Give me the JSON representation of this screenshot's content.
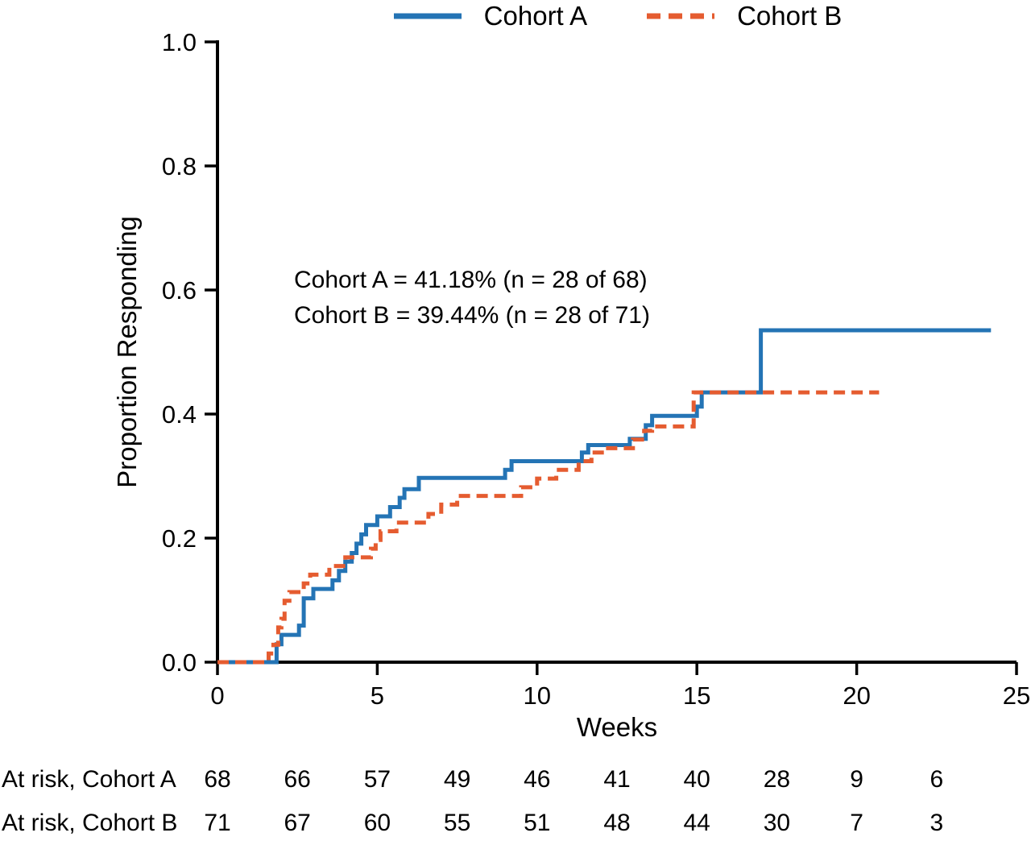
{
  "legend": {
    "items": [
      {
        "label": "Cohort A",
        "color": "#2474b5",
        "style": "solid"
      },
      {
        "label": "Cohort B",
        "color": "#e55c30",
        "style": "dashed"
      }
    ]
  },
  "annotation": {
    "line1": "Cohort A = 41.18% (n = 28 of 68)",
    "line2": "Cohort B = 39.44% (n = 28 of 71)"
  },
  "chart_data": {
    "type": "line",
    "subtype": "kaplan-meier-step",
    "title": "",
    "xlabel": "Weeks",
    "ylabel": "Proportion Responding",
    "xlim": [
      0,
      25
    ],
    "ylim": [
      0,
      1.0
    ],
    "xticks": [
      0,
      5,
      10,
      15,
      20,
      25
    ],
    "yticks": [
      0.0,
      0.2,
      0.4,
      0.6,
      0.8,
      1.0
    ],
    "ytick_labels": [
      "0.0",
      "0.2",
      "0.4",
      "0.6",
      "0.8",
      "1.0"
    ],
    "grid": false,
    "legend_position": "top-center",
    "series": [
      {
        "name": "Cohort A",
        "color": "#2474b5",
        "dash": "solid",
        "points": [
          [
            0,
            0
          ],
          [
            1.85,
            0.029
          ],
          [
            2.0,
            0.044
          ],
          [
            2.55,
            0.059
          ],
          [
            2.7,
            0.103
          ],
          [
            3.0,
            0.118
          ],
          [
            3.6,
            0.132
          ],
          [
            3.8,
            0.147
          ],
          [
            4.0,
            0.162
          ],
          [
            4.2,
            0.176
          ],
          [
            4.35,
            0.191
          ],
          [
            4.5,
            0.206
          ],
          [
            4.65,
            0.221
          ],
          [
            5.0,
            0.235
          ],
          [
            5.4,
            0.25
          ],
          [
            5.7,
            0.265
          ],
          [
            5.85,
            0.279
          ],
          [
            6.3,
            0.297
          ],
          [
            9.0,
            0.31
          ],
          [
            9.2,
            0.324
          ],
          [
            11.4,
            0.338
          ],
          [
            11.6,
            0.35
          ],
          [
            12.9,
            0.36
          ],
          [
            13.4,
            0.382
          ],
          [
            13.6,
            0.397
          ],
          [
            15.0,
            0.412
          ],
          [
            15.15,
            0.435
          ],
          [
            17.0,
            0.535
          ],
          [
            24.2,
            0.535
          ]
        ]
      },
      {
        "name": "Cohort B",
        "color": "#e55c30",
        "dash": "dashed",
        "points": [
          [
            0,
            0
          ],
          [
            1.6,
            0.014
          ],
          [
            1.75,
            0.028
          ],
          [
            1.9,
            0.056
          ],
          [
            2.0,
            0.07
          ],
          [
            2.1,
            0.099
          ],
          [
            2.25,
            0.113
          ],
          [
            2.7,
            0.127
          ],
          [
            2.9,
            0.141
          ],
          [
            3.5,
            0.155
          ],
          [
            4.0,
            0.169
          ],
          [
            4.8,
            0.183
          ],
          [
            4.95,
            0.197
          ],
          [
            5.1,
            0.211
          ],
          [
            5.6,
            0.225
          ],
          [
            6.6,
            0.239
          ],
          [
            7.0,
            0.254
          ],
          [
            7.5,
            0.268
          ],
          [
            9.5,
            0.282
          ],
          [
            10.0,
            0.296
          ],
          [
            10.6,
            0.31
          ],
          [
            11.3,
            0.324
          ],
          [
            11.7,
            0.338
          ],
          [
            12.1,
            0.345
          ],
          [
            13.0,
            0.359
          ],
          [
            13.35,
            0.373
          ],
          [
            13.6,
            0.38
          ],
          [
            14.9,
            0.435
          ],
          [
            20.7,
            0.435
          ]
        ]
      }
    ],
    "at_risk": {
      "weeks": [
        0,
        2.5,
        5,
        7.5,
        10,
        12.5,
        15,
        17.5,
        20,
        22.5
      ],
      "rows": [
        {
          "label": "At risk, Cohort A",
          "values": [
            68,
            66,
            57,
            49,
            46,
            41,
            40,
            28,
            9,
            6
          ]
        },
        {
          "label": "At risk, Cohort B",
          "values": [
            71,
            67,
            60,
            55,
            51,
            48,
            44,
            30,
            7,
            3
          ]
        }
      ]
    }
  }
}
